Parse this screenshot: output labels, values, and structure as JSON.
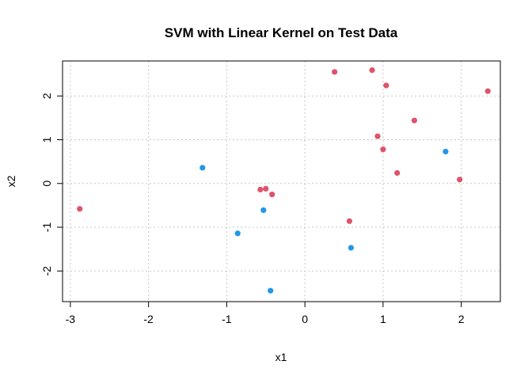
{
  "chart_data": {
    "type": "scatter",
    "title": "SVM with Linear Kernel on Test Data",
    "xlabel": "x1",
    "ylabel": "x2",
    "xlim": [
      -3.1,
      2.5
    ],
    "ylim": [
      -2.7,
      2.8
    ],
    "xticks": [
      -3,
      -2,
      -1,
      0,
      1,
      2
    ],
    "yticks": [
      -2,
      -1,
      0,
      1,
      2
    ],
    "grid": true,
    "series": [
      {
        "color": "#DF536B",
        "points": [
          [
            -2.88,
            -0.58
          ],
          [
            -0.57,
            -0.14
          ],
          [
            -0.5,
            -0.12
          ],
          [
            -0.42,
            -0.25
          ],
          [
            0.57,
            -0.86
          ],
          [
            0.38,
            2.55
          ],
          [
            0.86,
            2.59
          ],
          [
            1.04,
            2.24
          ],
          [
            2.34,
            2.11
          ],
          [
            1.4,
            1.44
          ],
          [
            0.93,
            1.08
          ],
          [
            1.0,
            0.78
          ],
          [
            1.18,
            0.24
          ],
          [
            1.98,
            0.09
          ]
        ]
      },
      {
        "color": "#2297E6",
        "points": [
          [
            -1.31,
            0.36
          ],
          [
            -0.86,
            -1.14
          ],
          [
            -0.53,
            -0.61
          ],
          [
            -0.44,
            -2.45
          ],
          [
            0.59,
            -1.47
          ],
          [
            1.8,
            0.73
          ]
        ]
      }
    ]
  }
}
